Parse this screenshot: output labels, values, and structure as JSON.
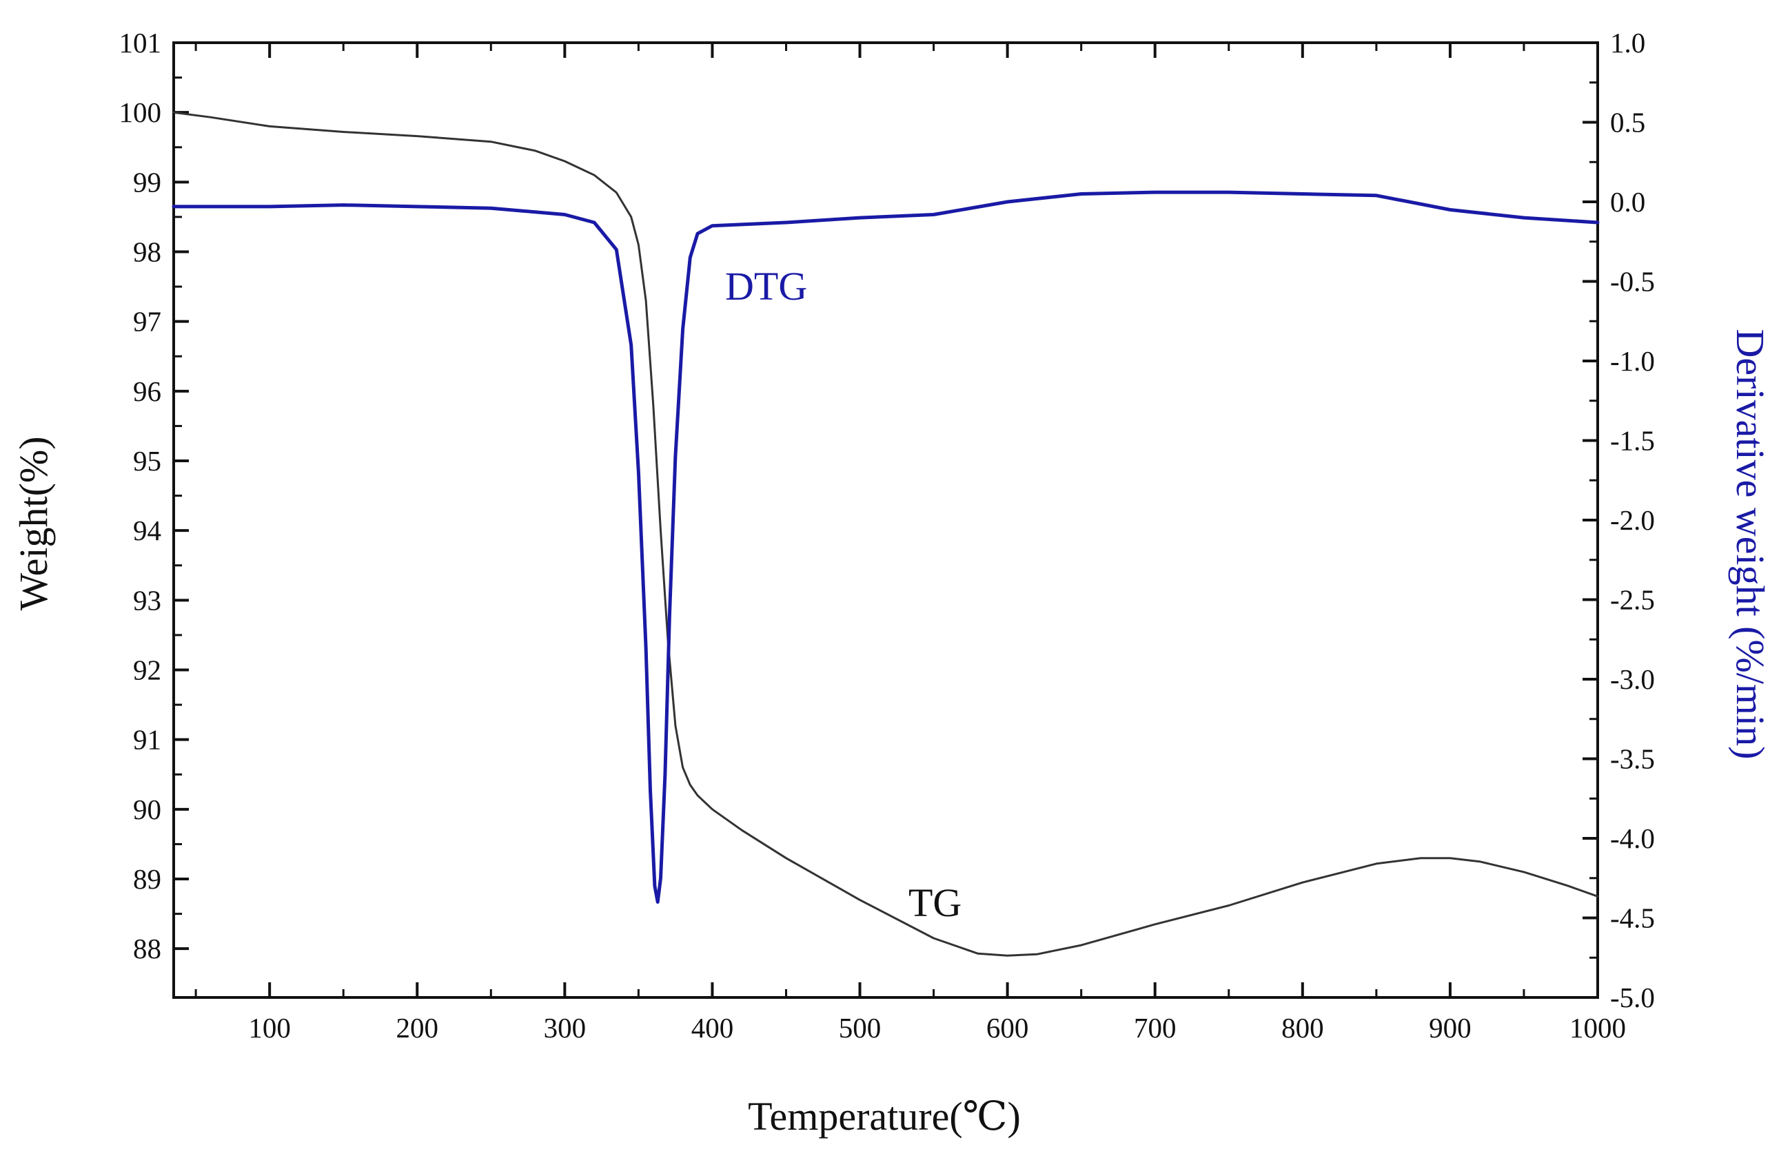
{
  "chart_data": {
    "type": "line",
    "xlabel": "Temperature(℃)",
    "ylabel_left": "Weight(%)",
    "ylabel_right": "Derivative weight (%/min)",
    "xlim": [
      35,
      1000
    ],
    "ylim_left": [
      87.3,
      101
    ],
    "ylim_right": [
      -5.0,
      1.0
    ],
    "x_ticks": [
      "100",
      "200",
      "300",
      "400",
      "500",
      "600",
      "700",
      "800",
      "900",
      "1000"
    ],
    "y_left_ticks": [
      "88",
      "89",
      "90",
      "91",
      "92",
      "93",
      "94",
      "95",
      "96",
      "97",
      "98",
      "99",
      "100",
      "101"
    ],
    "y_right_ticks": [
      "-5.0",
      "-4.5",
      "-4.0",
      "-3.5",
      "-3.0",
      "-2.5",
      "-2.0",
      "-1.5",
      "-1.0",
      "-0.5",
      "0.0",
      "0.5",
      "1.0"
    ],
    "grid": false,
    "colors": {
      "TG": "#333333",
      "DTG": "#1a1aa6",
      "axis": "#111111"
    },
    "series": [
      {
        "name": "TG",
        "axis": "left",
        "x": [
          35,
          60,
          100,
          150,
          200,
          250,
          280,
          300,
          320,
          335,
          345,
          350,
          355,
          360,
          365,
          370,
          375,
          380,
          385,
          390,
          400,
          420,
          450,
          500,
          550,
          580,
          600,
          620,
          650,
          700,
          750,
          800,
          850,
          880,
          900,
          920,
          950,
          980,
          1000
        ],
        "values": [
          100.0,
          99.93,
          99.8,
          99.72,
          99.66,
          99.58,
          99.45,
          99.3,
          99.1,
          98.85,
          98.5,
          98.1,
          97.3,
          95.8,
          94.0,
          92.4,
          91.2,
          90.6,
          90.35,
          90.2,
          90.0,
          89.7,
          89.3,
          88.7,
          88.15,
          87.93,
          87.9,
          87.92,
          88.05,
          88.35,
          88.62,
          88.95,
          89.22,
          89.3,
          89.3,
          89.25,
          89.1,
          88.9,
          88.75
        ]
      },
      {
        "name": "DTG",
        "axis": "right",
        "x": [
          35,
          100,
          150,
          200,
          250,
          300,
          320,
          335,
          345,
          350,
          355,
          358,
          361,
          363,
          365,
          368,
          371,
          375,
          380,
          385,
          390,
          400,
          450,
          500,
          550,
          600,
          650,
          700,
          750,
          800,
          850,
          900,
          950,
          1000
        ],
        "values": [
          -0.03,
          -0.03,
          -0.02,
          -0.03,
          -0.04,
          -0.08,
          -0.13,
          -0.3,
          -0.9,
          -1.7,
          -2.8,
          -3.7,
          -4.3,
          -4.4,
          -4.25,
          -3.6,
          -2.6,
          -1.6,
          -0.8,
          -0.35,
          -0.2,
          -0.15,
          -0.13,
          -0.1,
          -0.08,
          0.0,
          0.05,
          0.06,
          0.06,
          0.05,
          0.04,
          -0.05,
          -0.1,
          -0.13
        ]
      }
    ]
  },
  "annotations": {
    "tg_label": "TG",
    "dtg_label": "DTG"
  }
}
